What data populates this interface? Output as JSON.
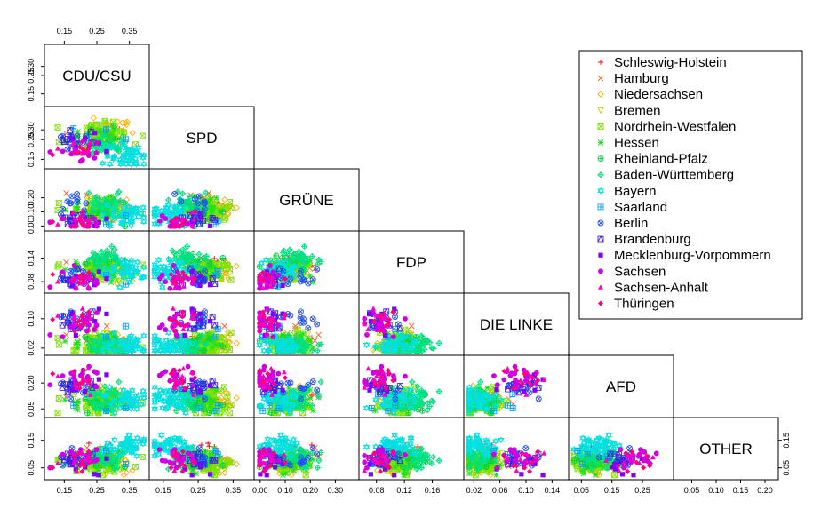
{
  "chart_data": {
    "type": "scatter",
    "title": "",
    "variables": [
      {
        "name": "CDU/CSU",
        "range": [
          0.1,
          0.4
        ],
        "ticks": [
          0.15,
          0.25,
          0.35
        ],
        "tick_labels": [
          "0.15",
          "0.25",
          "0.35"
        ],
        "center": 0.25,
        "spread": 0.07,
        "yticks": [
          0.15,
          0.25,
          0.3
        ],
        "ytick_labels": [
          "0.15",
          "0.25",
          "0.30"
        ]
      },
      {
        "name": "SPD",
        "range": [
          0.12,
          0.4
        ],
        "ticks": [
          0.15,
          0.25,
          0.35
        ],
        "tick_labels": [
          "0.15",
          "0.25",
          "0.35"
        ],
        "center": 0.24,
        "spread": 0.05,
        "yticks": [
          0.15,
          0.25,
          0.3
        ],
        "ytick_labels": [
          "0.15",
          "0.25",
          "0.30"
        ]
      },
      {
        "name": "GRÜNE",
        "range": [
          -0.01,
          0.38
        ],
        "ticks": [
          0.0,
          0.1,
          0.2,
          0.3
        ],
        "tick_labels": [
          "0.00",
          "0.10",
          "0.20",
          "0.30"
        ],
        "center": 0.1,
        "spread": 0.07,
        "yticks": [
          0.0,
          0.1,
          0.2
        ],
        "ytick_labels": [
          "0.00",
          "0.10",
          "0.20"
        ]
      },
      {
        "name": "FDP",
        "range": [
          0.06,
          0.2
        ],
        "ticks": [
          0.08,
          0.12,
          0.16
        ],
        "tick_labels": [
          "0.08",
          "0.12",
          "0.16"
        ],
        "center": 0.1,
        "spread": 0.025,
        "yticks": [
          0.08,
          0.14
        ],
        "ytick_labels": [
          "0.08",
          "0.14"
        ]
      },
      {
        "name": "DIE LINKE",
        "range": [
          0.01,
          0.16
        ],
        "ticks": [
          0.02,
          0.06,
          0.1,
          0.14
        ],
        "tick_labels": [
          "0.02",
          "0.06",
          "0.10",
          "0.14"
        ],
        "center": 0.05,
        "spread": 0.03,
        "yticks": [
          0.02,
          0.1
        ],
        "ytick_labels": [
          "0.02",
          "0.10"
        ]
      },
      {
        "name": "AFD",
        "range": [
          0.02,
          0.34
        ],
        "ticks": [
          0.05,
          0.15,
          0.25
        ],
        "tick_labels": [
          "0.05",
          "0.15",
          "0.25"
        ],
        "center": 0.12,
        "spread": 0.06,
        "yticks": [
          0.05,
          0.2
        ],
        "ytick_labels": [
          "0.05",
          "0.20"
        ]
      },
      {
        "name": "OTHER",
        "range": [
          0.02,
          0.22
        ],
        "ticks": [
          0.05,
          0.1,
          0.15,
          0.2
        ],
        "tick_labels": [
          "0.05",
          "0.10",
          "0.15",
          "0.20"
        ],
        "center": 0.08,
        "spread": 0.035,
        "yticks": [
          0.05,
          0.15
        ],
        "ytick_labels": [
          "0.05",
          "0.15"
        ]
      }
    ],
    "series": [
      {
        "name": "Schleswig-Holstein",
        "color": "#FF0000",
        "symbol": "plus"
      },
      {
        "name": "Hamburg",
        "color": "#FF6020",
        "symbol": "cross"
      },
      {
        "name": "Niedersachsen",
        "color": "#FFAA00",
        "symbol": "diamond"
      },
      {
        "name": "Bremen",
        "color": "#C8D200",
        "symbol": "triangle-down"
      },
      {
        "name": "Nordrhein-Westfalen",
        "color": "#80E000",
        "symbol": "square-x"
      },
      {
        "name": "Hessen",
        "color": "#20E020",
        "symbol": "asterisk"
      },
      {
        "name": "Rheinland-Pfalz",
        "color": "#00D040",
        "symbol": "circle-plus"
      },
      {
        "name": "Baden-Württemberg",
        "color": "#00E080",
        "symbol": "diamond-plus"
      },
      {
        "name": "Bayern",
        "color": "#00E0E0",
        "symbol": "hexagram"
      },
      {
        "name": "Saarland",
        "color": "#00A0FF",
        "symbol": "square-plus"
      },
      {
        "name": "Berlin",
        "color": "#2050FF",
        "symbol": "circle-x"
      },
      {
        "name": "Brandenburg",
        "color": "#4020E0",
        "symbol": "square-triangle"
      },
      {
        "name": "Mecklenburg-Vorpommern",
        "color": "#8000FF",
        "symbol": "square"
      },
      {
        "name": "Sachsen",
        "color": "#D000E0",
        "symbol": "circle"
      },
      {
        "name": "Sachsen-Anhalt",
        "color": "#FF00C0",
        "symbol": "triangle-up"
      },
      {
        "name": "Thüringen",
        "color": "#FF0080",
        "symbol": "diamond-filled"
      }
    ],
    "legend_position": "top-right",
    "grid": false
  }
}
